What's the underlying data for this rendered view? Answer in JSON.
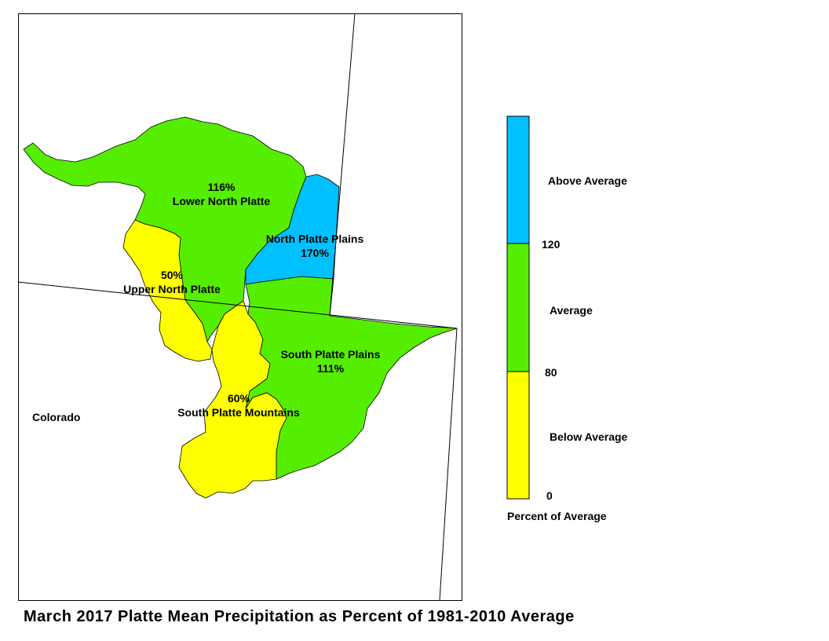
{
  "title": "March 2017 Platte Mean Precipitation as Percent of 1981-2010 Average",
  "state_label": "Colorado",
  "regions": [
    {
      "name": "Lower North Platte",
      "percent": "116%",
      "category": "Average"
    },
    {
      "name": "North Platte Plains",
      "percent": "170%",
      "category": "Above Average"
    },
    {
      "name": "Upper North Platte",
      "percent": "50%",
      "category": "Below Average"
    },
    {
      "name": "South Platte Plains",
      "percent": "111%",
      "category": "Average"
    },
    {
      "name": "South Platte Mountains",
      "percent": "60%",
      "category": "Below Average"
    }
  ],
  "legend": {
    "title": "Percent of Average",
    "categories": [
      {
        "label": "Above Average",
        "color": "#00C0FF"
      },
      {
        "label": "Average",
        "color": "#55EE00"
      },
      {
        "label": "Below Average",
        "color": "#FFFF00"
      }
    ],
    "ticks": [
      "120",
      "80",
      "0"
    ]
  },
  "colors": {
    "above": "#00C0FF",
    "average": "#55EE00",
    "below": "#FFFF00"
  }
}
